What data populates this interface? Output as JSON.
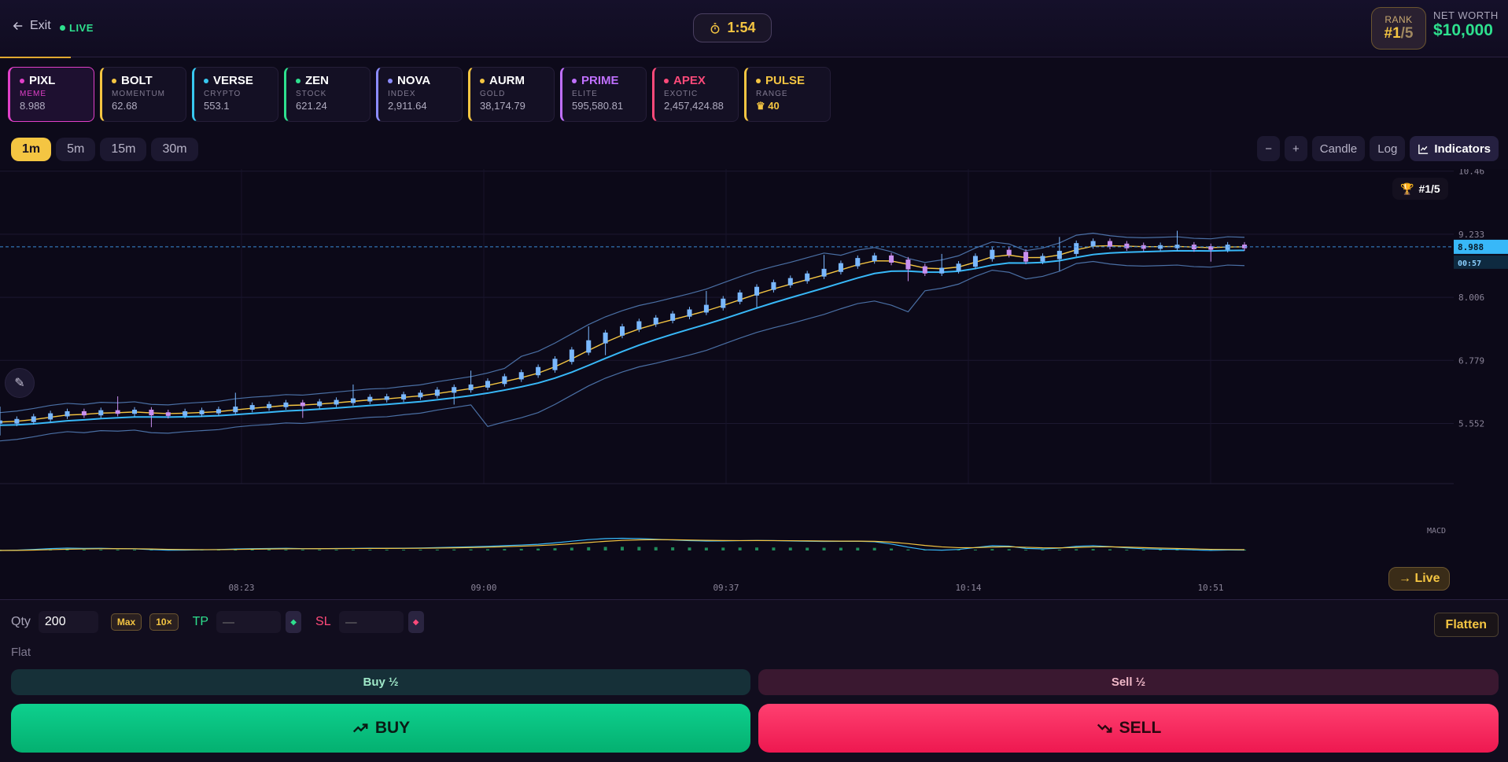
{
  "header": {
    "exit_label": "Exit",
    "live_label": "LIVE",
    "timer": "1:54",
    "rank_label": "RANK",
    "rank_value": "#1",
    "rank_total": "/5",
    "networth_label": "NET WORTH",
    "networth_value": "$10,000"
  },
  "assets": [
    {
      "name": "PIXL",
      "type": "MEME",
      "price": "8.988",
      "color": "#e040c8",
      "active": true
    },
    {
      "name": "BOLT",
      "type": "MOMENTUM",
      "price": "62.68",
      "color": "#f4c542"
    },
    {
      "name": "VERSE",
      "type": "CRYPTO",
      "price": "553.1",
      "color": "#38c8f0"
    },
    {
      "name": "ZEN",
      "type": "STOCK",
      "price": "621.24",
      "color": "#2ee08e"
    },
    {
      "name": "NOVA",
      "type": "INDEX",
      "price": "2,911.64",
      "color": "#8c8cff"
    },
    {
      "name": "AURM",
      "type": "GOLD",
      "price": "38,174.79",
      "color": "#f4c542"
    },
    {
      "name": "PRIME",
      "type": "ELITE",
      "price": "595,580.81",
      "color": "#c070ff"
    },
    {
      "name": "APEX",
      "type": "EXOTIC",
      "price": "2,457,424.88",
      "color": "#ff4a7a"
    },
    {
      "name": "PULSE",
      "type": "RANGE",
      "price": "40",
      "color": "#f4c542",
      "crown": "♛"
    }
  ],
  "timeframes": [
    "1m",
    "5m",
    "15m",
    "30m"
  ],
  "active_timeframe": "1m",
  "chart_controls": {
    "zoom_out": "−",
    "zoom_in": "+",
    "candle": "Candle",
    "log": "Log",
    "indicators": "Indicators"
  },
  "chart_data": {
    "type": "candlestick",
    "y_ticks": [
      "10.46",
      "9.233",
      "8.006",
      "6.779",
      "5.552"
    ],
    "x_ticks": [
      "08:23",
      "09:00",
      "09:37",
      "10:14",
      "10:51"
    ],
    "current_price": "8.988",
    "countdown": "00:57",
    "rank_badge": "#1/5",
    "macd_label": "MACD",
    "live_button": "→ Live",
    "series": [
      {
        "name": "price",
        "values": [
          5.58,
          5.61,
          5.66,
          5.72,
          5.76,
          5.74,
          5.78,
          5.77,
          5.79,
          5.74,
          5.73,
          5.76,
          5.78,
          5.8,
          5.85,
          5.88,
          5.9,
          5.93,
          5.92,
          5.95,
          5.98,
          6.01,
          6.04,
          6.05,
          6.09,
          6.12,
          6.18,
          6.23,
          6.28,
          6.35,
          6.44,
          6.52,
          6.62,
          6.78,
          6.96,
          7.14,
          7.29,
          7.41,
          7.51,
          7.58,
          7.66,
          7.74,
          7.83,
          7.95,
          8.07,
          8.18,
          8.27,
          8.35,
          8.44,
          8.53,
          8.64,
          8.74,
          8.79,
          8.71,
          8.58,
          8.5,
          8.55,
          8.63,
          8.78,
          8.9,
          8.86,
          8.73,
          8.78,
          8.88,
          9.03,
          9.07,
          9.02,
          8.99,
          8.98,
          8.99,
          9.0,
          8.97,
          8.96,
          9.0,
          8.99
        ]
      }
    ]
  },
  "order": {
    "qty_label": "Qty",
    "qty_value": "200",
    "max_label": "Max",
    "mult_label": "10×",
    "tp_label": "TP",
    "tp_placeholder": "—",
    "sl_label": "SL",
    "sl_placeholder": "—",
    "flatten_label": "Flatten",
    "position_label": "Flat",
    "buy_half_label": "Buy ½",
    "sell_half_label": "Sell ½",
    "buy_label": "BUY",
    "sell_label": "SELL"
  }
}
